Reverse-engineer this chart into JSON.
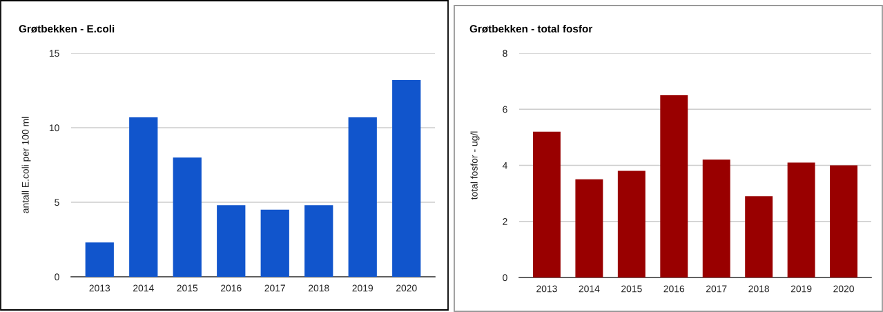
{
  "chart_data": [
    {
      "type": "bar",
      "title": "Grøtbekken - E.coli",
      "ylabel": "antall E.coli per 100 ml",
      "categories": [
        "2013",
        "2014",
        "2015",
        "2016",
        "2017",
        "2018",
        "2019",
        "2020"
      ],
      "values": [
        2.3,
        10.7,
        8.0,
        4.8,
        4.5,
        4.8,
        10.7,
        13.2
      ],
      "color": "#1155cc",
      "ylim": [
        0,
        15
      ],
      "yticks": [
        0,
        5,
        10,
        15
      ],
      "grid": "y"
    },
    {
      "type": "bar",
      "title": "Grøtbekken - total fosfor",
      "ylabel": "total fosfor - ug/l",
      "categories": [
        "2013",
        "2014",
        "2015",
        "2016",
        "2017",
        "2018",
        "2019",
        "2020"
      ],
      "values": [
        5.2,
        3.5,
        3.8,
        6.5,
        4.2,
        2.9,
        4.1,
        4.0
      ],
      "color": "#990000",
      "ylim": [
        0,
        8
      ],
      "yticks": [
        0,
        2,
        4,
        6,
        8
      ],
      "grid": "y"
    }
  ]
}
